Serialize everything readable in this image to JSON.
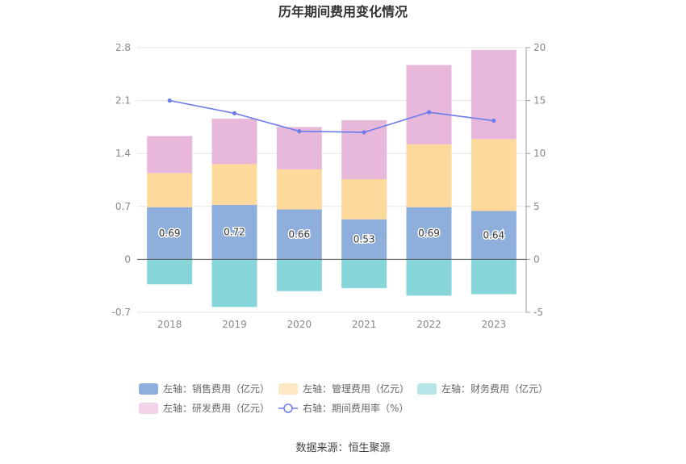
{
  "chart_data": {
    "type": "bar",
    "title": "历年期间费用变化情况",
    "categories": [
      "2018",
      "2019",
      "2020",
      "2021",
      "2022",
      "2023"
    ],
    "series": [
      {
        "name": "左轴：销售费用（亿元）",
        "axis": "left",
        "color": "#8eaedb",
        "values": [
          0.69,
          0.72,
          0.66,
          0.53,
          0.69,
          0.64
        ],
        "show_labels": true
      },
      {
        "name": "左轴：管理费用（亿元）",
        "axis": "left",
        "color": "#fdd99b",
        "values": [
          0.45,
          0.54,
          0.53,
          0.53,
          0.83,
          0.95
        ]
      },
      {
        "name": "左轴：财务费用（亿元）",
        "axis": "left",
        "color": "#86d5d8",
        "values": [
          -0.33,
          -0.63,
          -0.42,
          -0.38,
          -0.48,
          -0.46
        ]
      },
      {
        "name": "左轴：研发费用（亿元）",
        "axis": "left",
        "color": "#e8b8da",
        "values": [
          0.49,
          0.6,
          0.56,
          0.78,
          1.05,
          1.18
        ]
      },
      {
        "name": "右轴：期间费用率（%）",
        "axis": "right",
        "type": "line",
        "color": "#6b7bea",
        "values": [
          15.0,
          13.8,
          12.1,
          12.0,
          13.9,
          13.1
        ]
      }
    ],
    "left_axis": {
      "min": -0.7,
      "max": 2.8,
      "ticks": [
        "-0.7",
        "0",
        "0.7",
        "1.4",
        "2.1",
        "2.8"
      ]
    },
    "right_axis": {
      "min": -5,
      "max": 20,
      "ticks": [
        "-5",
        "0",
        "5",
        "10",
        "15",
        "20"
      ]
    },
    "grid": true,
    "legend_position": "bottom"
  },
  "source": "数据来源：恒生聚源"
}
